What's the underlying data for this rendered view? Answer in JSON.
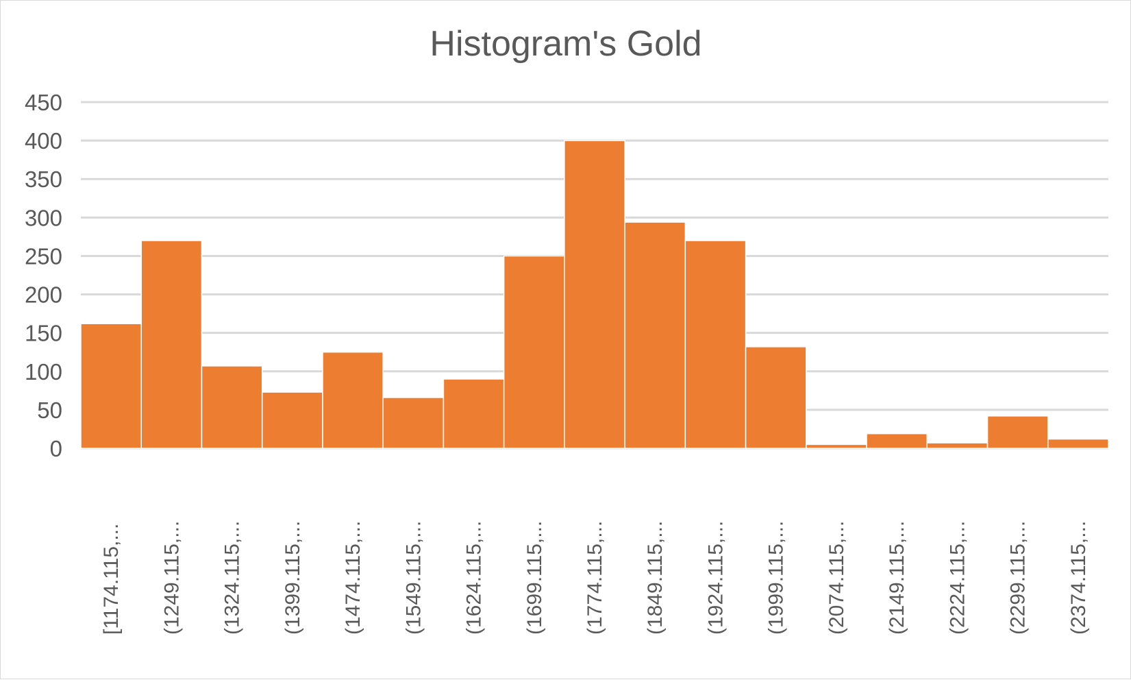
{
  "chart_data": {
    "type": "bar",
    "title": "Histogram's Gold",
    "xlabel": "",
    "ylabel": "",
    "ylim": [
      0,
      450
    ],
    "yticks": [
      0,
      50,
      100,
      150,
      200,
      250,
      300,
      350,
      400,
      450
    ],
    "grid": true,
    "legend": "none",
    "bar_color": "#ed7d31",
    "categories": [
      "[1174.115,...",
      "(1249.115,...",
      "(1324.115,...",
      "(1399.115,...",
      "(1474.115,...",
      "(1549.115,...",
      "(1624.115,...",
      "(1699.115,...",
      "(1774.115,...",
      "(1849.115,...",
      "(1924.115,...",
      "(1999.115,...",
      "(2074.115,...",
      "(2149.115,...",
      "(2224.115,...",
      "(2299.115,...",
      "(2374.115,..."
    ],
    "values": [
      162,
      270,
      107,
      73,
      125,
      66,
      90,
      250,
      400,
      294,
      270,
      132,
      5,
      19,
      7,
      42,
      12
    ]
  }
}
